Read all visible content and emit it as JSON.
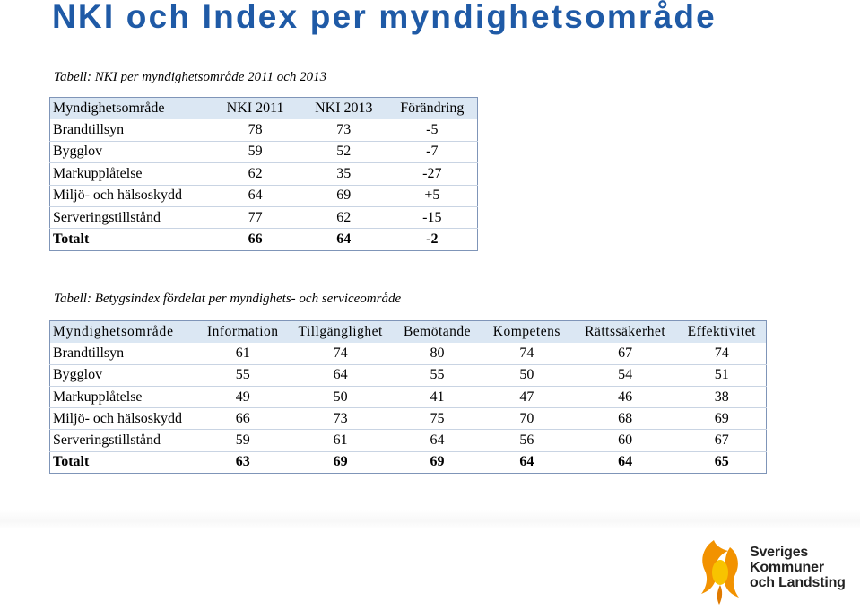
{
  "title": "NKI och Index per myndighetsområde",
  "table1": {
    "caption": "Tabell: NKI per myndighetsområde 2011 och 2013",
    "headers": [
      "Myndighetsområde",
      "NKI 2011",
      "NKI 2013",
      "Förändring"
    ],
    "rows": [
      [
        "Brandtillsyn",
        "78",
        "73",
        "-5"
      ],
      [
        "Bygglov",
        "59",
        "52",
        "-7"
      ],
      [
        "Markupplåtelse",
        "62",
        "35",
        "-27"
      ],
      [
        "Miljö- och hälsoskydd",
        "64",
        "69",
        "+5"
      ],
      [
        "Serveringstillstånd",
        "77",
        "62",
        "-15"
      ],
      [
        "Totalt",
        "66",
        "64",
        "-2"
      ]
    ]
  },
  "table2": {
    "caption": "Tabell: Betygsindex fördelat per myndighets- och serviceområde",
    "headers": [
      "Myndighetsområde",
      "Information",
      "Tillgänglighet",
      "Bemötande",
      "Kompetens",
      "Rättssäkerhet",
      "Effektivitet"
    ],
    "rows": [
      [
        "Brandtillsyn",
        "61",
        "74",
        "80",
        "74",
        "67",
        "74"
      ],
      [
        "Bygglov",
        "55",
        "64",
        "55",
        "50",
        "54",
        "51"
      ],
      [
        "Markupplåtelse",
        "49",
        "50",
        "41",
        "47",
        "46",
        "38"
      ],
      [
        "Miljö- och hälsoskydd",
        "66",
        "73",
        "75",
        "70",
        "68",
        "69"
      ],
      [
        "Serveringstillstånd",
        "59",
        "61",
        "64",
        "56",
        "60",
        "67"
      ],
      [
        "Totalt",
        "63",
        "69",
        "69",
        "64",
        "64",
        "65"
      ]
    ]
  },
  "logo": {
    "lines": [
      "Sveriges",
      "Kommuner",
      "och Landsting"
    ]
  },
  "colors": {
    "title": "#1f5aa6",
    "header_fill": "#dbe7f3",
    "logo_orange": "#f29200",
    "logo_yellow": "#f8c300"
  }
}
